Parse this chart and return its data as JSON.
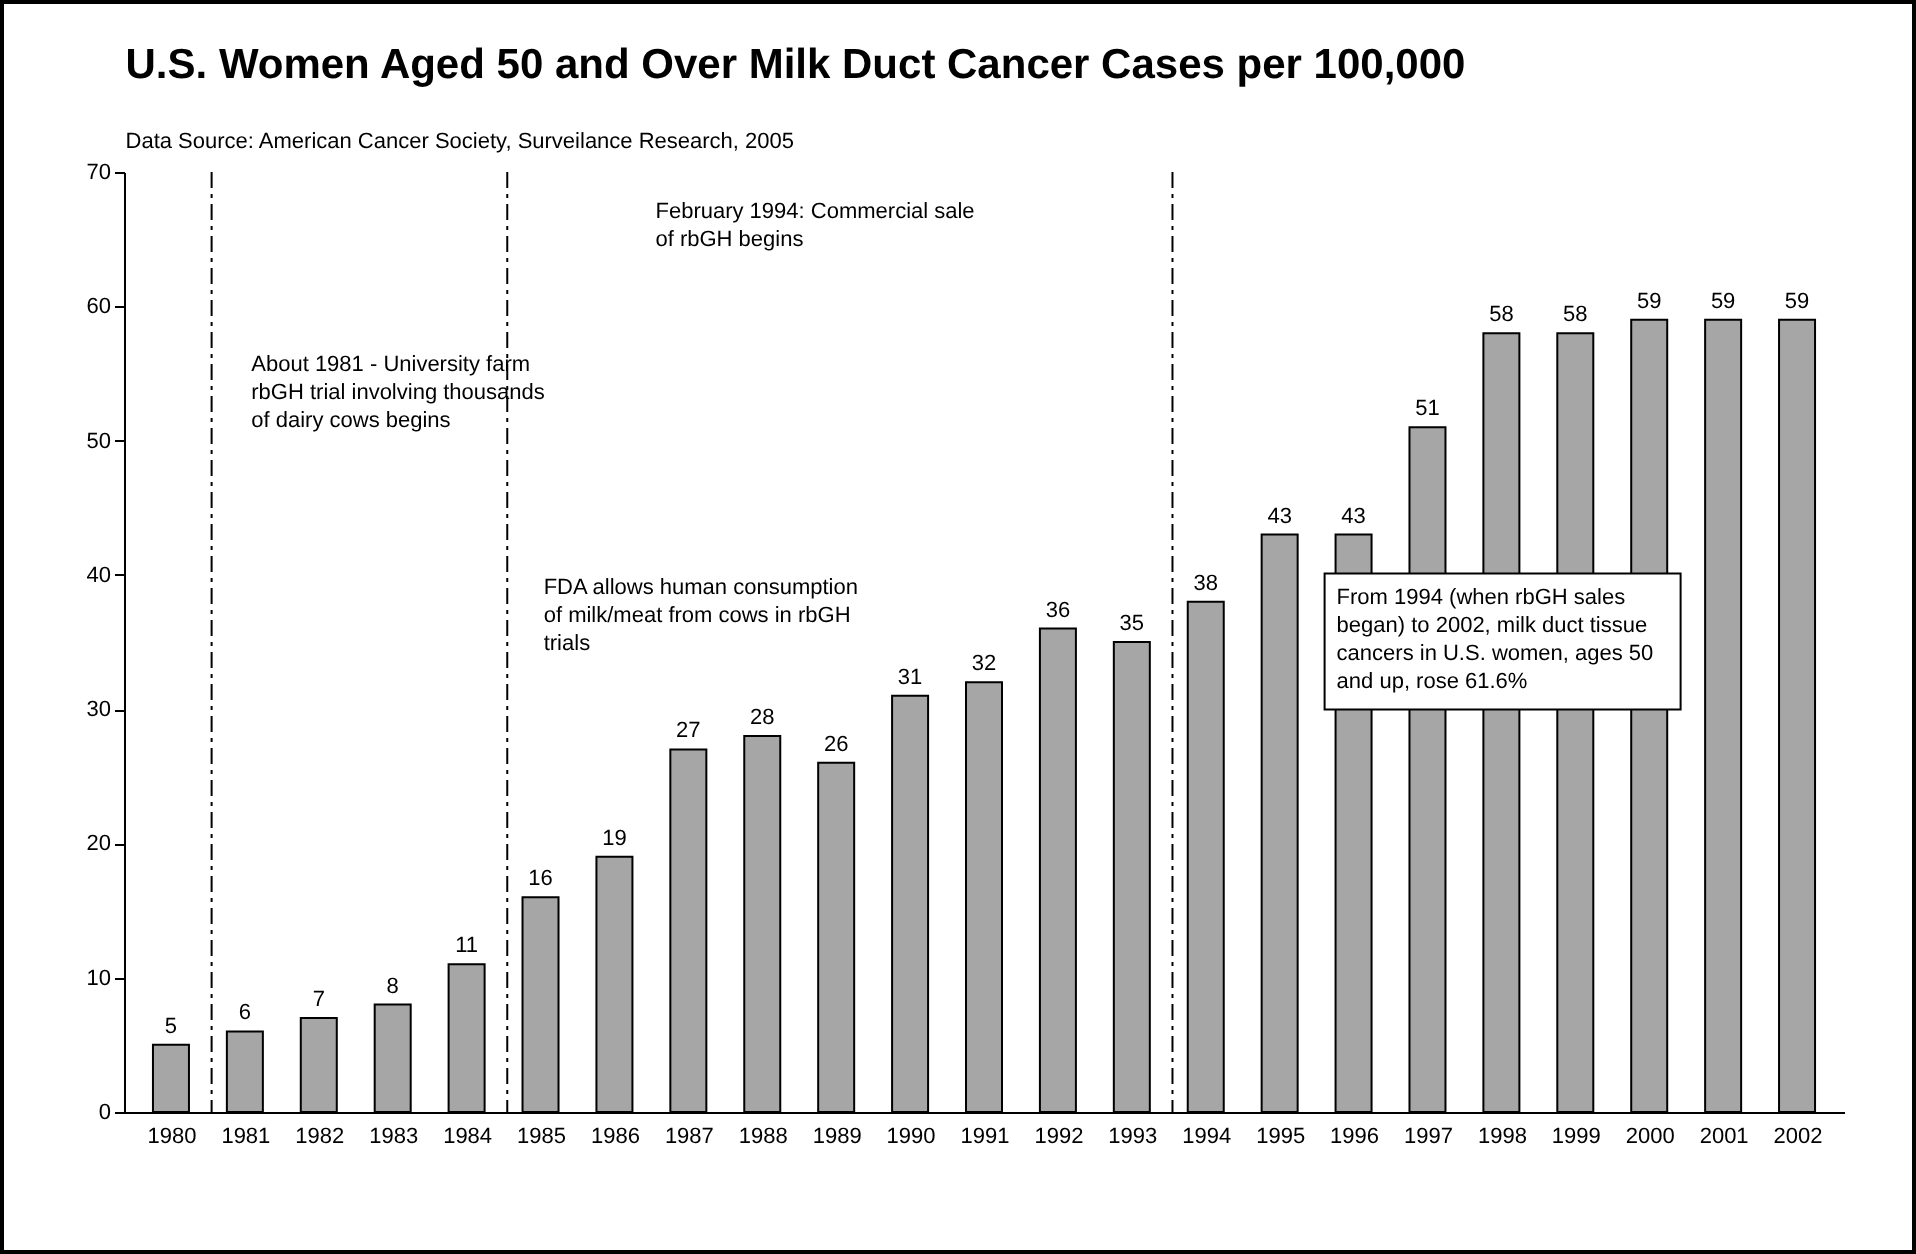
{
  "chart_data": {
    "type": "bar",
    "title": "U.S. Women Aged 50 and Over Milk Duct Cancer Cases  per 100,000",
    "x": [
      1980,
      1981,
      1982,
      1983,
      1984,
      1985,
      1986,
      1987,
      1988,
      1989,
      1990,
      1991,
      1992,
      1993,
      1994,
      1995,
      1996,
      1997,
      1998,
      1999,
      2000,
      2001,
      2002
    ],
    "values": [
      5,
      6,
      7,
      8,
      11,
      16,
      19,
      27,
      28,
      26,
      31,
      32,
      36,
      35,
      38,
      43,
      43,
      51,
      58,
      58,
      59,
      59,
      59
    ],
    "color": "#a6a6a6",
    "xlim": [
      1979.5,
      2002.5
    ],
    "xticks": [
      1980,
      1981,
      1982,
      1983,
      1984,
      1985,
      1986,
      1987,
      1988,
      1989,
      1990,
      1991,
      1992,
      1993,
      1994,
      1995,
      1996,
      1997,
      1998,
      1999,
      2000,
      2001,
      2002
    ],
    "ylim": [
      0,
      70
    ],
    "yticks": [
      0,
      10,
      20,
      30,
      40,
      50,
      60,
      70
    ],
    "data_labels": true,
    "grid": false,
    "ref_lines": [
      {
        "axis": "x",
        "value": 1980.55,
        "line_style": "dashdot"
      },
      {
        "axis": "x",
        "value": 1984.55,
        "line_style": "dashdot"
      },
      {
        "axis": "x",
        "value": 1993.55,
        "line_style": "dashdot"
      }
    ],
    "annotations": [
      "Data Source: American Cancer Society, Surveilance Research, 2005",
      "About 1981 - University farm\nrbGH trial involving thousands\nof dairy cows begins",
      "FDA allows human consumption\nof milk/meat from cows in rbGH\ntrials",
      "February 1994: Commercial sale\nof rbGH begins",
      "From 1994 (when rbGH sales\nbegan) to 2002, milk duct tissue\ncancers in U.S. women, ages 50\nand up, rose 61.6%"
    ]
  }
}
